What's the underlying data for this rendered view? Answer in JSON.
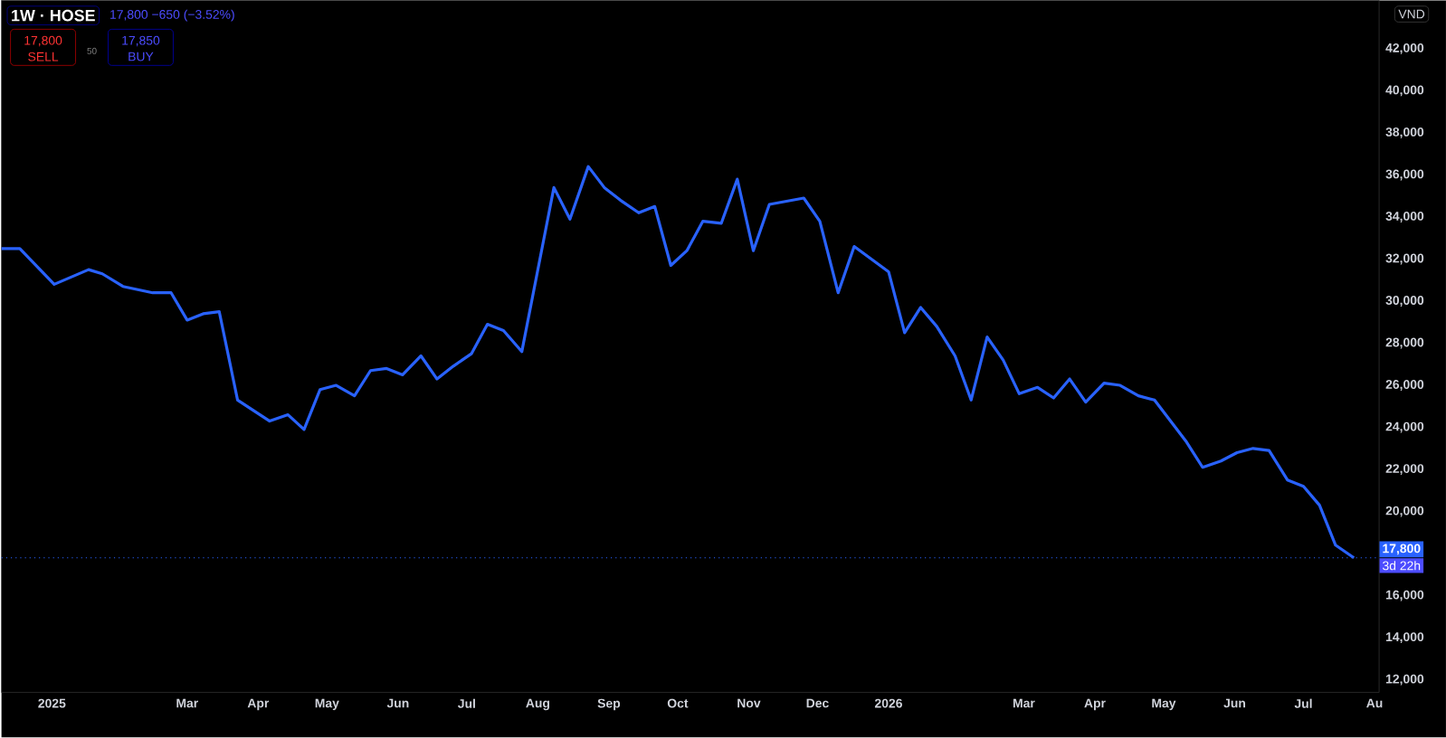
{
  "chart_data": {
    "type": "line",
    "title": "1W · HOSE",
    "x": [
      "2024-12-10",
      "2024-12-18",
      "2025-01-02",
      "2025-01-17",
      "2025-01-23",
      "2025-02-01",
      "2025-02-14",
      "2025-02-22",
      "2025-03-01",
      "2025-03-08",
      "2025-03-15",
      "2025-03-23",
      "2025-04-06",
      "2025-04-14",
      "2025-04-21",
      "2025-04-28",
      "2025-05-05",
      "2025-05-13",
      "2025-05-20",
      "2025-05-27",
      "2025-06-03",
      "2025-06-11",
      "2025-06-18",
      "2025-06-25",
      "2025-07-03",
      "2025-07-10",
      "2025-07-17",
      "2025-07-25",
      "2025-08-08",
      "2025-08-15",
      "2025-08-23",
      "2025-08-30",
      "2025-09-06",
      "2025-09-14",
      "2025-09-21",
      "2025-09-28",
      "2025-10-05",
      "2025-10-12",
      "2025-10-20",
      "2025-10-27",
      "2025-11-03",
      "2025-11-10",
      "2025-11-25",
      "2025-12-02",
      "2025-12-10",
      "2025-12-17",
      "2026-01-01",
      "2026-01-08",
      "2026-01-15",
      "2026-01-22",
      "2026-01-30",
      "2026-02-06",
      "2026-02-13",
      "2026-02-20",
      "2026-02-27",
      "2026-03-07",
      "2026-03-14",
      "2026-03-21",
      "2026-03-28",
      "2026-04-05",
      "2026-04-12",
      "2026-04-20",
      "2026-04-27",
      "2026-05-04",
      "2026-05-11",
      "2026-05-18",
      "2026-05-26",
      "2026-06-02",
      "2026-06-09",
      "2026-06-16",
      "2026-06-24",
      "2026-07-01",
      "2026-07-08",
      "2026-07-15",
      "2026-07-23"
    ],
    "series": [
      {
        "color": "#2962ff",
        "values": [
          32500,
          32500,
          30800,
          31500,
          31300,
          30700,
          30400,
          30400,
          29100,
          29400,
          29500,
          25300,
          24300,
          24600,
          23900,
          25800,
          26000,
          25500,
          26700,
          26800,
          26500,
          27400,
          26300,
          26900,
          27500,
          28900,
          28600,
          27600,
          35400,
          33900,
          36400,
          35400,
          34800,
          34200,
          34500,
          31700,
          32400,
          33800,
          33700,
          35800,
          32400,
          34600,
          34900,
          33800,
          30400,
          32600,
          31400,
          28500,
          29700,
          28800,
          27400,
          25300,
          28300,
          27200,
          25600,
          25900,
          25400,
          26300,
          25200,
          26100,
          26000,
          25500,
          25300,
          24300,
          23300,
          22100,
          22400,
          22800,
          23000,
          22900,
          21500,
          21200,
          20300,
          18400,
          17800
        ]
      }
    ],
    "xlim": [
      "2024-12-10",
      "2026-08-03"
    ],
    "xticks": [
      {
        "value": "2025-01-01",
        "label": "2025"
      },
      {
        "value": "2025-03-01",
        "label": "Mar"
      },
      {
        "value": "2025-04-01",
        "label": "Apr"
      },
      {
        "value": "2025-05-01",
        "label": "May"
      },
      {
        "value": "2025-06-01",
        "label": "Jun"
      },
      {
        "value": "2025-07-01",
        "label": "Jul"
      },
      {
        "value": "2025-08-01",
        "label": "Aug"
      },
      {
        "value": "2025-09-01",
        "label": "Sep"
      },
      {
        "value": "2025-10-01",
        "label": "Oct"
      },
      {
        "value": "2025-11-01",
        "label": "Nov"
      },
      {
        "value": "2025-12-01",
        "label": "Dec"
      },
      {
        "value": "2026-01-01",
        "label": "2026"
      },
      {
        "value": "2026-03-01",
        "label": "Mar"
      },
      {
        "value": "2026-04-01",
        "label": "Apr"
      },
      {
        "value": "2026-05-01",
        "label": "May"
      },
      {
        "value": "2026-06-01",
        "label": "Jun"
      },
      {
        "value": "2026-07-01",
        "label": "Jul"
      },
      {
        "value": "2026-08-01",
        "label": "Au"
      }
    ],
    "ylim": [
      11400,
      44300
    ],
    "yticks": [
      {
        "value": 12000,
        "label": "12,000"
      },
      {
        "value": 14000,
        "label": "14,000"
      },
      {
        "value": 16000,
        "label": "16,000"
      },
      {
        "value": 20000,
        "label": "20,000"
      },
      {
        "value": 22000,
        "label": "22,000"
      },
      {
        "value": 24000,
        "label": "24,000"
      },
      {
        "value": 26000,
        "label": "26,000"
      },
      {
        "value": 28000,
        "label": "28,000"
      },
      {
        "value": 30000,
        "label": "30,000"
      },
      {
        "value": 32000,
        "label": "32,000"
      },
      {
        "value": 34000,
        "label": "34,000"
      },
      {
        "value": 36000,
        "label": "36,000"
      },
      {
        "value": 38000,
        "label": "38,000"
      },
      {
        "value": 40000,
        "label": "40,000"
      },
      {
        "value": 42000,
        "label": "42,000"
      }
    ],
    "ref_lines": [
      {
        "axis": "y",
        "value": 17800,
        "label": "17,800",
        "color": "#2962ff",
        "line_style": "dotted"
      }
    ],
    "annotations": [
      "17,800 −650 (−3.52%)",
      "17,800",
      "SELL",
      "50",
      "17,850",
      "BUY",
      "VND",
      "3d 22h"
    ]
  }
}
